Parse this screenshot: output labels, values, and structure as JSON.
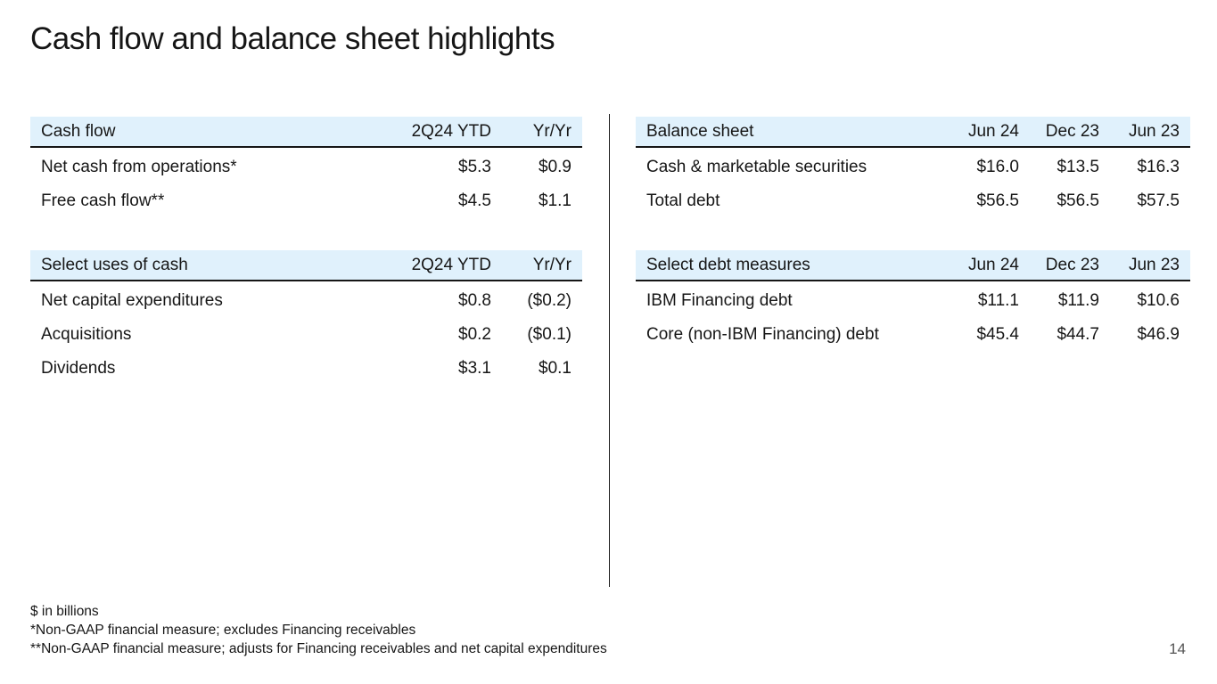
{
  "slide": {
    "title": "Cash flow and balance sheet highlights",
    "page_number": "14"
  },
  "colors": {
    "header_bg": "#e0f1fc",
    "text": "#161616",
    "rule": "#161616",
    "divider": "#1d1d1d",
    "page_number": "#545454"
  },
  "tables": {
    "cash_flow": {
      "title": "Cash flow",
      "columns": [
        "2Q24 YTD",
        "Yr/Yr"
      ],
      "rows": [
        {
          "label": "Net cash from operations*",
          "values": [
            "$5.3",
            "$0.9"
          ]
        },
        {
          "label": "Free cash flow**",
          "values": [
            "$4.5",
            "$1.1"
          ]
        }
      ]
    },
    "select_uses_of_cash": {
      "title": "Select uses of cash",
      "columns": [
        "2Q24 YTD",
        "Yr/Yr"
      ],
      "rows": [
        {
          "label": "Net capital expenditures",
          "values": [
            "$0.8",
            "($0.2)"
          ]
        },
        {
          "label": "Acquisitions",
          "values": [
            "$0.2",
            "($0.1)"
          ]
        },
        {
          "label": "Dividends",
          "values": [
            "$3.1",
            "$0.1"
          ]
        }
      ]
    },
    "balance_sheet": {
      "title": "Balance sheet",
      "columns": [
        "Jun 24",
        "Dec 23",
        "Jun 23"
      ],
      "rows": [
        {
          "label": "Cash & marketable securities",
          "values": [
            "$16.0",
            "$13.5",
            "$16.3"
          ]
        },
        {
          "label": "Total debt",
          "values": [
            "$56.5",
            "$56.5",
            "$57.5"
          ]
        }
      ]
    },
    "select_debt_measures": {
      "title": "Select debt measures",
      "columns": [
        "Jun 24",
        "Dec 23",
        "Jun 23"
      ],
      "rows": [
        {
          "label": "IBM Financing debt",
          "values": [
            "$11.1",
            "$11.9",
            "$10.6"
          ]
        },
        {
          "label": "Core (non-IBM Financing) debt",
          "values": [
            "$45.4",
            "$44.7",
            "$46.9"
          ]
        }
      ]
    }
  },
  "footnotes": [
    "$ in billions",
    "*Non-GAAP financial measure; excludes Financing receivables",
    "**Non-GAAP financial measure; adjusts for Financing receivables and net capital expenditures"
  ]
}
